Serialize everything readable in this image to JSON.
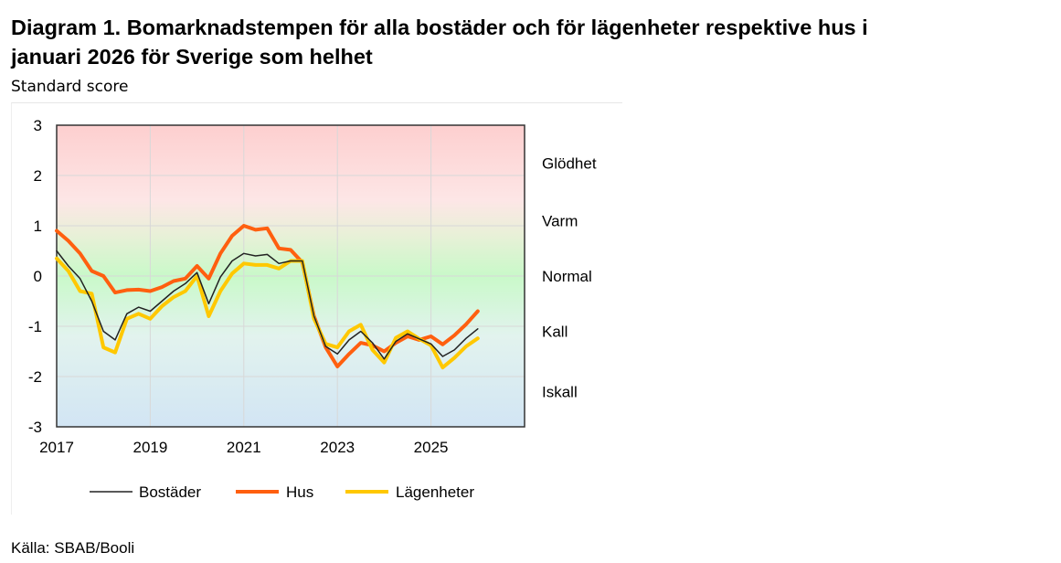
{
  "title_line1": "Diagram 1. Bomarknadstempen för alla bostäder och för lägenheter respektive hus i",
  "title_line2": "januari 2026 för Sverige som helhet",
  "subtitle": "Standard score",
  "source": "Källa: SBAB/Booli",
  "chart_data": {
    "type": "line",
    "ylabel": "Standard score",
    "ylim": [
      -3,
      3
    ],
    "xlim": [
      2017,
      2027
    ],
    "y_ticks": [
      "3",
      "2",
      "1",
      "0",
      "-1",
      "-2",
      "-3"
    ],
    "x_ticks": [
      "2017",
      "2019",
      "2021",
      "2023",
      "2025"
    ],
    "grid": true,
    "zones": [
      {
        "label": "Glödhet",
        "y": 2.25
      },
      {
        "label": "Varm",
        "y": 1.1
      },
      {
        "label": "Normal",
        "y": 0
      },
      {
        "label": "Kall",
        "y": -1.1
      },
      {
        "label": "Iskall",
        "y": -2.3
      }
    ],
    "legend_position": "bottom",
    "x": [
      2017.0,
      2017.25,
      2017.5,
      2017.75,
      2018.0,
      2018.25,
      2018.5,
      2018.75,
      2019.0,
      2019.25,
      2019.5,
      2019.75,
      2020.0,
      2020.25,
      2020.5,
      2020.75,
      2021.0,
      2021.25,
      2021.5,
      2021.75,
      2022.0,
      2022.25,
      2022.5,
      2022.75,
      2023.0,
      2023.25,
      2023.5,
      2023.75,
      2024.0,
      2024.25,
      2024.5,
      2024.75,
      2025.0,
      2025.25,
      2025.5,
      2025.75,
      2026.0
    ],
    "series": [
      {
        "name": "Bostäder",
        "color": "#222222",
        "values": [
          0.5,
          0.2,
          -0.05,
          -0.5,
          -1.1,
          -1.27,
          -0.75,
          -0.62,
          -0.7,
          -0.5,
          -0.3,
          -0.15,
          0.07,
          -0.55,
          -0.02,
          0.3,
          0.45,
          0.4,
          0.43,
          0.25,
          0.3,
          0.3,
          -0.8,
          -1.4,
          -1.55,
          -1.27,
          -1.1,
          -1.33,
          -1.65,
          -1.3,
          -1.15,
          -1.25,
          -1.35,
          -1.6,
          -1.47,
          -1.24,
          -1.05
        ]
      },
      {
        "name": "Hus",
        "color": "#ff5f0f",
        "values": [
          0.9,
          0.7,
          0.45,
          0.1,
          0.0,
          -0.33,
          -0.28,
          -0.27,
          -0.3,
          -0.22,
          -0.1,
          -0.05,
          0.2,
          -0.05,
          0.45,
          0.8,
          1.0,
          0.92,
          0.95,
          0.55,
          0.52,
          0.27,
          -0.8,
          -1.42,
          -1.8,
          -1.55,
          -1.33,
          -1.38,
          -1.5,
          -1.33,
          -1.2,
          -1.27,
          -1.2,
          -1.36,
          -1.18,
          -0.96,
          -0.7
        ]
      },
      {
        "name": "Lägenheter",
        "color": "#ffc800",
        "values": [
          0.35,
          0.1,
          -0.3,
          -0.35,
          -1.42,
          -1.52,
          -0.85,
          -0.75,
          -0.85,
          -0.6,
          -0.42,
          -0.3,
          0.0,
          -0.8,
          -0.3,
          0.05,
          0.25,
          0.22,
          0.22,
          0.15,
          0.3,
          0.3,
          -0.85,
          -1.35,
          -1.42,
          -1.1,
          -0.97,
          -1.47,
          -1.72,
          -1.23,
          -1.1,
          -1.25,
          -1.38,
          -1.82,
          -1.63,
          -1.4,
          -1.24
        ]
      }
    ]
  }
}
